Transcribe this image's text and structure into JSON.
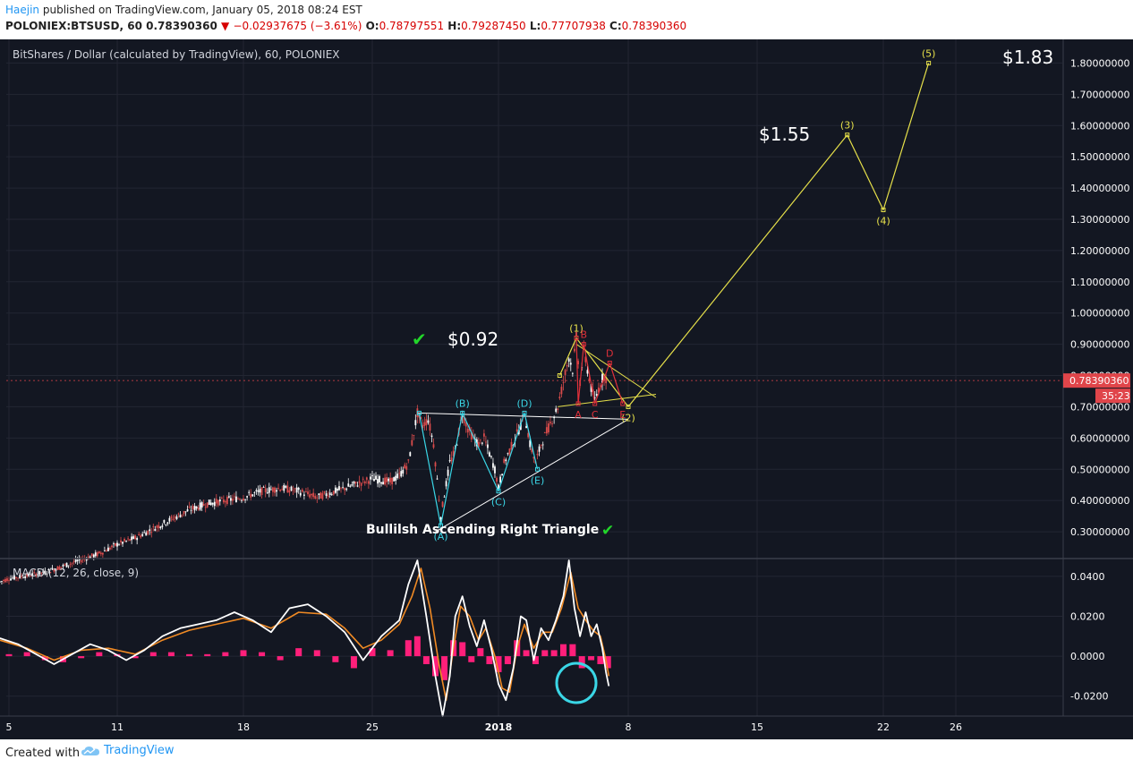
{
  "header": {
    "author": "Haejin",
    "published_text": " published on TradingView.com, January 05, 2018 08:24 EST",
    "symbol_line": "POLONIEX:BTSUSD, 60",
    "last_price": "0.78390360",
    "change_arrow": "▼",
    "change": "−0.02937675 (−3.61%)",
    "o_label": "O:",
    "o": "0.78797551",
    "h_label": "H:",
    "h": "0.79287450",
    "l_label": "L:",
    "l": "0.77707938",
    "c_label": "C:",
    "c": "0.78390360"
  },
  "footer": {
    "created_with": "Created with",
    "brand": "TradingView"
  },
  "colors": {
    "background": "#131722",
    "grid": "#232633",
    "axis_text": "#ffffff",
    "price_tag": "#e0454a",
    "cyan": "#3ad6e6",
    "yellow": "#e6e04a",
    "red": "#e0303a",
    "white_line": "#ffffff",
    "macd": "#ffffff",
    "signal": "#f08a24",
    "histogram": "#ff1f7a",
    "candle_up": "#ffffff",
    "candle_down": "#d94b4b",
    "check": "#22d62a"
  },
  "chart_data": [
    {
      "type": "line",
      "title": "BitShares / Dollar (calculated by TradingView), 60, POLONIEX",
      "x_axis": {
        "ticks": [
          "5",
          "11",
          "18",
          "25",
          "2018",
          "8",
          "15",
          "22",
          "26"
        ]
      },
      "ylim": [
        0.22,
        1.87
      ],
      "y_ticks": [
        "0.30000000",
        "0.40000000",
        "0.50000000",
        "0.60000000",
        "0.70000000",
        "0.80000000",
        "0.90000000",
        "1.00000000",
        "1.10000000",
        "1.20000000",
        "1.30000000",
        "1.40000000",
        "1.50000000",
        "1.60000000",
        "1.70000000",
        "1.80000000"
      ],
      "last_price_tag": "0.78390360",
      "countdown_tag": "35:23",
      "annotations": {
        "price_092": "$0.92",
        "price_155": "$1.55",
        "price_183": "$1.83",
        "triangle": "Bullilsh Ascending Right Triangle",
        "checkmark": "✔"
      },
      "wave_cyan": {
        "labels": [
          "(A)",
          "(B)",
          "(C)",
          "(D)",
          "(E)"
        ],
        "points": [
          [
            22.6,
            0.68
          ],
          [
            23.8,
            0.32
          ],
          [
            25.0,
            0.68
          ],
          [
            27.0,
            0.43
          ],
          [
            28.4,
            0.68
          ],
          [
            29.1,
            0.5
          ]
        ]
      },
      "wave_yellow": {
        "labels": [
          "(1)",
          "(2)",
          "(3)",
          "(4)",
          "(5)"
        ],
        "points": [
          [
            30.3,
            0.8
          ],
          [
            31.2,
            0.92
          ],
          [
            34.0,
            0.7
          ],
          [
            46.0,
            1.57
          ],
          [
            48.0,
            1.33
          ],
          [
            50.5,
            1.8
          ]
        ]
      },
      "wave_red": {
        "labels": [
          "A",
          "B",
          "C",
          "D",
          "E"
        ],
        "points": [
          [
            31.2,
            0.92
          ],
          [
            31.3,
            0.71
          ],
          [
            31.6,
            0.9
          ],
          [
            32.2,
            0.71
          ],
          [
            33.0,
            0.84
          ],
          [
            33.7,
            0.71
          ]
        ]
      },
      "triangle_lines": {
        "white_top": [
          [
            22.5,
            0.68
          ],
          [
            34.0,
            0.66
          ]
        ],
        "white_bottom": [
          [
            23.5,
            0.3
          ],
          [
            34.0,
            0.66
          ]
        ],
        "yellow_top": [
          [
            31.2,
            0.9
          ],
          [
            35.5,
            0.73
          ]
        ],
        "yellow_bottom": [
          [
            30.2,
            0.7
          ],
          [
            35.5,
            0.74
          ]
        ]
      },
      "price_series": [
        [
          -0.5,
          0.14
        ],
        [
          0,
          0.15
        ],
        [
          1,
          0.16
        ],
        [
          2,
          0.17
        ],
        [
          3,
          0.19
        ],
        [
          4,
          0.21
        ],
        [
          5,
          0.23
        ],
        [
          6,
          0.26
        ],
        [
          7,
          0.28
        ],
        [
          8,
          0.31
        ],
        [
          9,
          0.34
        ],
        [
          10,
          0.37
        ],
        [
          11,
          0.39
        ],
        [
          12,
          0.4
        ],
        [
          13,
          0.41
        ],
        [
          14,
          0.43
        ],
        [
          15,
          0.44
        ],
        [
          16,
          0.43
        ],
        [
          17,
          0.41
        ],
        [
          18,
          0.43
        ],
        [
          19,
          0.45
        ],
        [
          20,
          0.47
        ],
        [
          21,
          0.46
        ],
        [
          21.5,
          0.48
        ],
        [
          22,
          0.52
        ],
        [
          22.5,
          0.68
        ],
        [
          22.8,
          0.64
        ],
        [
          23.1,
          0.66
        ],
        [
          23.4,
          0.58
        ],
        [
          23.8,
          0.35
        ],
        [
          24.0,
          0.42
        ],
        [
          24.3,
          0.52
        ],
        [
          24.6,
          0.56
        ],
        [
          25.0,
          0.68
        ],
        [
          25.3,
          0.63
        ],
        [
          25.6,
          0.6
        ],
        [
          25.9,
          0.58
        ],
        [
          26.2,
          0.6
        ],
        [
          26.5,
          0.55
        ],
        [
          26.8,
          0.5
        ],
        [
          27.0,
          0.44
        ],
        [
          27.3,
          0.52
        ],
        [
          27.6,
          0.56
        ],
        [
          27.9,
          0.6
        ],
        [
          28.2,
          0.64
        ],
        [
          28.4,
          0.68
        ],
        [
          28.7,
          0.58
        ],
        [
          29.0,
          0.52
        ],
        [
          29.3,
          0.58
        ],
        [
          29.6,
          0.62
        ],
        [
          29.9,
          0.66
        ],
        [
          30.2,
          0.7
        ],
        [
          30.5,
          0.78
        ],
        [
          30.8,
          0.86
        ],
        [
          31.0,
          0.82
        ],
        [
          31.2,
          0.92
        ],
        [
          31.4,
          0.78
        ],
        [
          31.6,
          0.88
        ],
        [
          31.8,
          0.82
        ],
        [
          32.0,
          0.76
        ],
        [
          32.2,
          0.72
        ],
        [
          32.5,
          0.78
        ],
        [
          32.7,
          0.8
        ],
        [
          32.9,
          0.784
        ]
      ]
    },
    {
      "type": "line",
      "title": "MACD (12, 26, close, 9)",
      "ylim": [
        -0.03,
        0.048
      ],
      "y_ticks": [
        "0.0400",
        "0.0200",
        "0.0000",
        "-0.0200"
      ],
      "macd": [
        [
          -0.5,
          0.009
        ],
        [
          0.5,
          0.006
        ],
        [
          1.5,
          0.001
        ],
        [
          2.5,
          -0.004
        ],
        [
          3.5,
          0.001
        ],
        [
          4.5,
          0.006
        ],
        [
          5.5,
          0.003
        ],
        [
          6.5,
          -0.002
        ],
        [
          7.5,
          0.003
        ],
        [
          8.5,
          0.01
        ],
        [
          9.5,
          0.014
        ],
        [
          10.5,
          0.016
        ],
        [
          11.5,
          0.018
        ],
        [
          12.5,
          0.022
        ],
        [
          13.5,
          0.018
        ],
        [
          14.5,
          0.012
        ],
        [
          15.5,
          0.024
        ],
        [
          16.5,
          0.026
        ],
        [
          17.5,
          0.02
        ],
        [
          18.5,
          0.012
        ],
        [
          19.5,
          -0.002
        ],
        [
          20.5,
          0.01
        ],
        [
          21.5,
          0.018
        ],
        [
          22.0,
          0.036
        ],
        [
          22.5,
          0.048
        ],
        [
          23.0,
          0.02
        ],
        [
          23.5,
          -0.01
        ],
        [
          23.9,
          -0.03
        ],
        [
          24.3,
          -0.01
        ],
        [
          24.6,
          0.02
        ],
        [
          25.0,
          0.03
        ],
        [
          25.4,
          0.015
        ],
        [
          25.8,
          0.005
        ],
        [
          26.2,
          0.018
        ],
        [
          26.6,
          0.004
        ],
        [
          27.0,
          -0.014
        ],
        [
          27.4,
          -0.022
        ],
        [
          27.8,
          -0.006
        ],
        [
          28.2,
          0.02
        ],
        [
          28.5,
          0.018
        ],
        [
          28.9,
          -0.002
        ],
        [
          29.3,
          0.014
        ],
        [
          29.7,
          0.008
        ],
        [
          30.1,
          0.018
        ],
        [
          30.5,
          0.03
        ],
        [
          30.8,
          0.048
        ],
        [
          31.1,
          0.024
        ],
        [
          31.4,
          0.01
        ],
        [
          31.7,
          0.022
        ],
        [
          32.0,
          0.01
        ],
        [
          32.3,
          0.016
        ],
        [
          32.6,
          0.004
        ],
        [
          32.8,
          -0.008
        ],
        [
          32.95,
          -0.015
        ]
      ],
      "signal": [
        [
          -0.5,
          0.008
        ],
        [
          1.0,
          0.004
        ],
        [
          2.5,
          -0.002
        ],
        [
          4.0,
          0.003
        ],
        [
          5.5,
          0.004
        ],
        [
          7.0,
          0.001
        ],
        [
          8.5,
          0.008
        ],
        [
          10,
          0.013
        ],
        [
          11.5,
          0.016
        ],
        [
          13,
          0.019
        ],
        [
          14.5,
          0.014
        ],
        [
          16,
          0.022
        ],
        [
          17.5,
          0.021
        ],
        [
          18.5,
          0.014
        ],
        [
          19.5,
          0.004
        ],
        [
          20.5,
          0.008
        ],
        [
          21.5,
          0.016
        ],
        [
          22.2,
          0.03
        ],
        [
          22.7,
          0.044
        ],
        [
          23.2,
          0.024
        ],
        [
          23.7,
          -0.004
        ],
        [
          24.1,
          -0.022
        ],
        [
          24.5,
          0.004
        ],
        [
          24.9,
          0.025
        ],
        [
          25.4,
          0.02
        ],
        [
          25.9,
          0.008
        ],
        [
          26.3,
          0.014
        ],
        [
          26.8,
          0.0
        ],
        [
          27.2,
          -0.016
        ],
        [
          27.6,
          -0.018
        ],
        [
          28.0,
          0.004
        ],
        [
          28.4,
          0.016
        ],
        [
          28.9,
          0.004
        ],
        [
          29.4,
          0.012
        ],
        [
          29.9,
          0.012
        ],
        [
          30.4,
          0.024
        ],
        [
          30.9,
          0.042
        ],
        [
          31.3,
          0.024
        ],
        [
          31.7,
          0.018
        ],
        [
          32.1,
          0.013
        ],
        [
          32.5,
          0.01
        ],
        [
          32.8,
          -0.002
        ],
        [
          32.95,
          -0.01
        ]
      ],
      "histogram": [
        [
          0,
          0.001
        ],
        [
          1,
          0.002
        ],
        [
          2,
          -0.002
        ],
        [
          3,
          -0.003
        ],
        [
          4,
          -0.001
        ],
        [
          5,
          0.002
        ],
        [
          6,
          0.001
        ],
        [
          7,
          -0.001
        ],
        [
          8,
          0.002
        ],
        [
          9,
          0.002
        ],
        [
          10,
          0.001
        ],
        [
          11,
          0.001
        ],
        [
          12,
          0.002
        ],
        [
          13,
          0.003
        ],
        [
          14,
          0.002
        ],
        [
          15,
          -0.002
        ],
        [
          16,
          0.004
        ],
        [
          17,
          0.003
        ],
        [
          18,
          -0.003
        ],
        [
          19,
          -0.006
        ],
        [
          20,
          0.004
        ],
        [
          21,
          0.003
        ],
        [
          22,
          0.008
        ],
        [
          22.5,
          0.01
        ],
        [
          23,
          -0.004
        ],
        [
          23.5,
          -0.01
        ],
        [
          24,
          -0.012
        ],
        [
          24.5,
          0.008
        ],
        [
          25,
          0.007
        ],
        [
          25.5,
          -0.003
        ],
        [
          26,
          0.004
        ],
        [
          26.5,
          -0.004
        ],
        [
          27,
          -0.008
        ],
        [
          27.5,
          -0.004
        ],
        [
          28,
          0.008
        ],
        [
          28.5,
          0.003
        ],
        [
          29,
          -0.004
        ],
        [
          29.5,
          0.003
        ],
        [
          30,
          0.003
        ],
        [
          30.5,
          0.006
        ],
        [
          31,
          0.006
        ],
        [
          31.5,
          -0.006
        ],
        [
          32,
          -0.002
        ],
        [
          32.5,
          -0.004
        ],
        [
          32.9,
          -0.006
        ]
      ]
    }
  ]
}
